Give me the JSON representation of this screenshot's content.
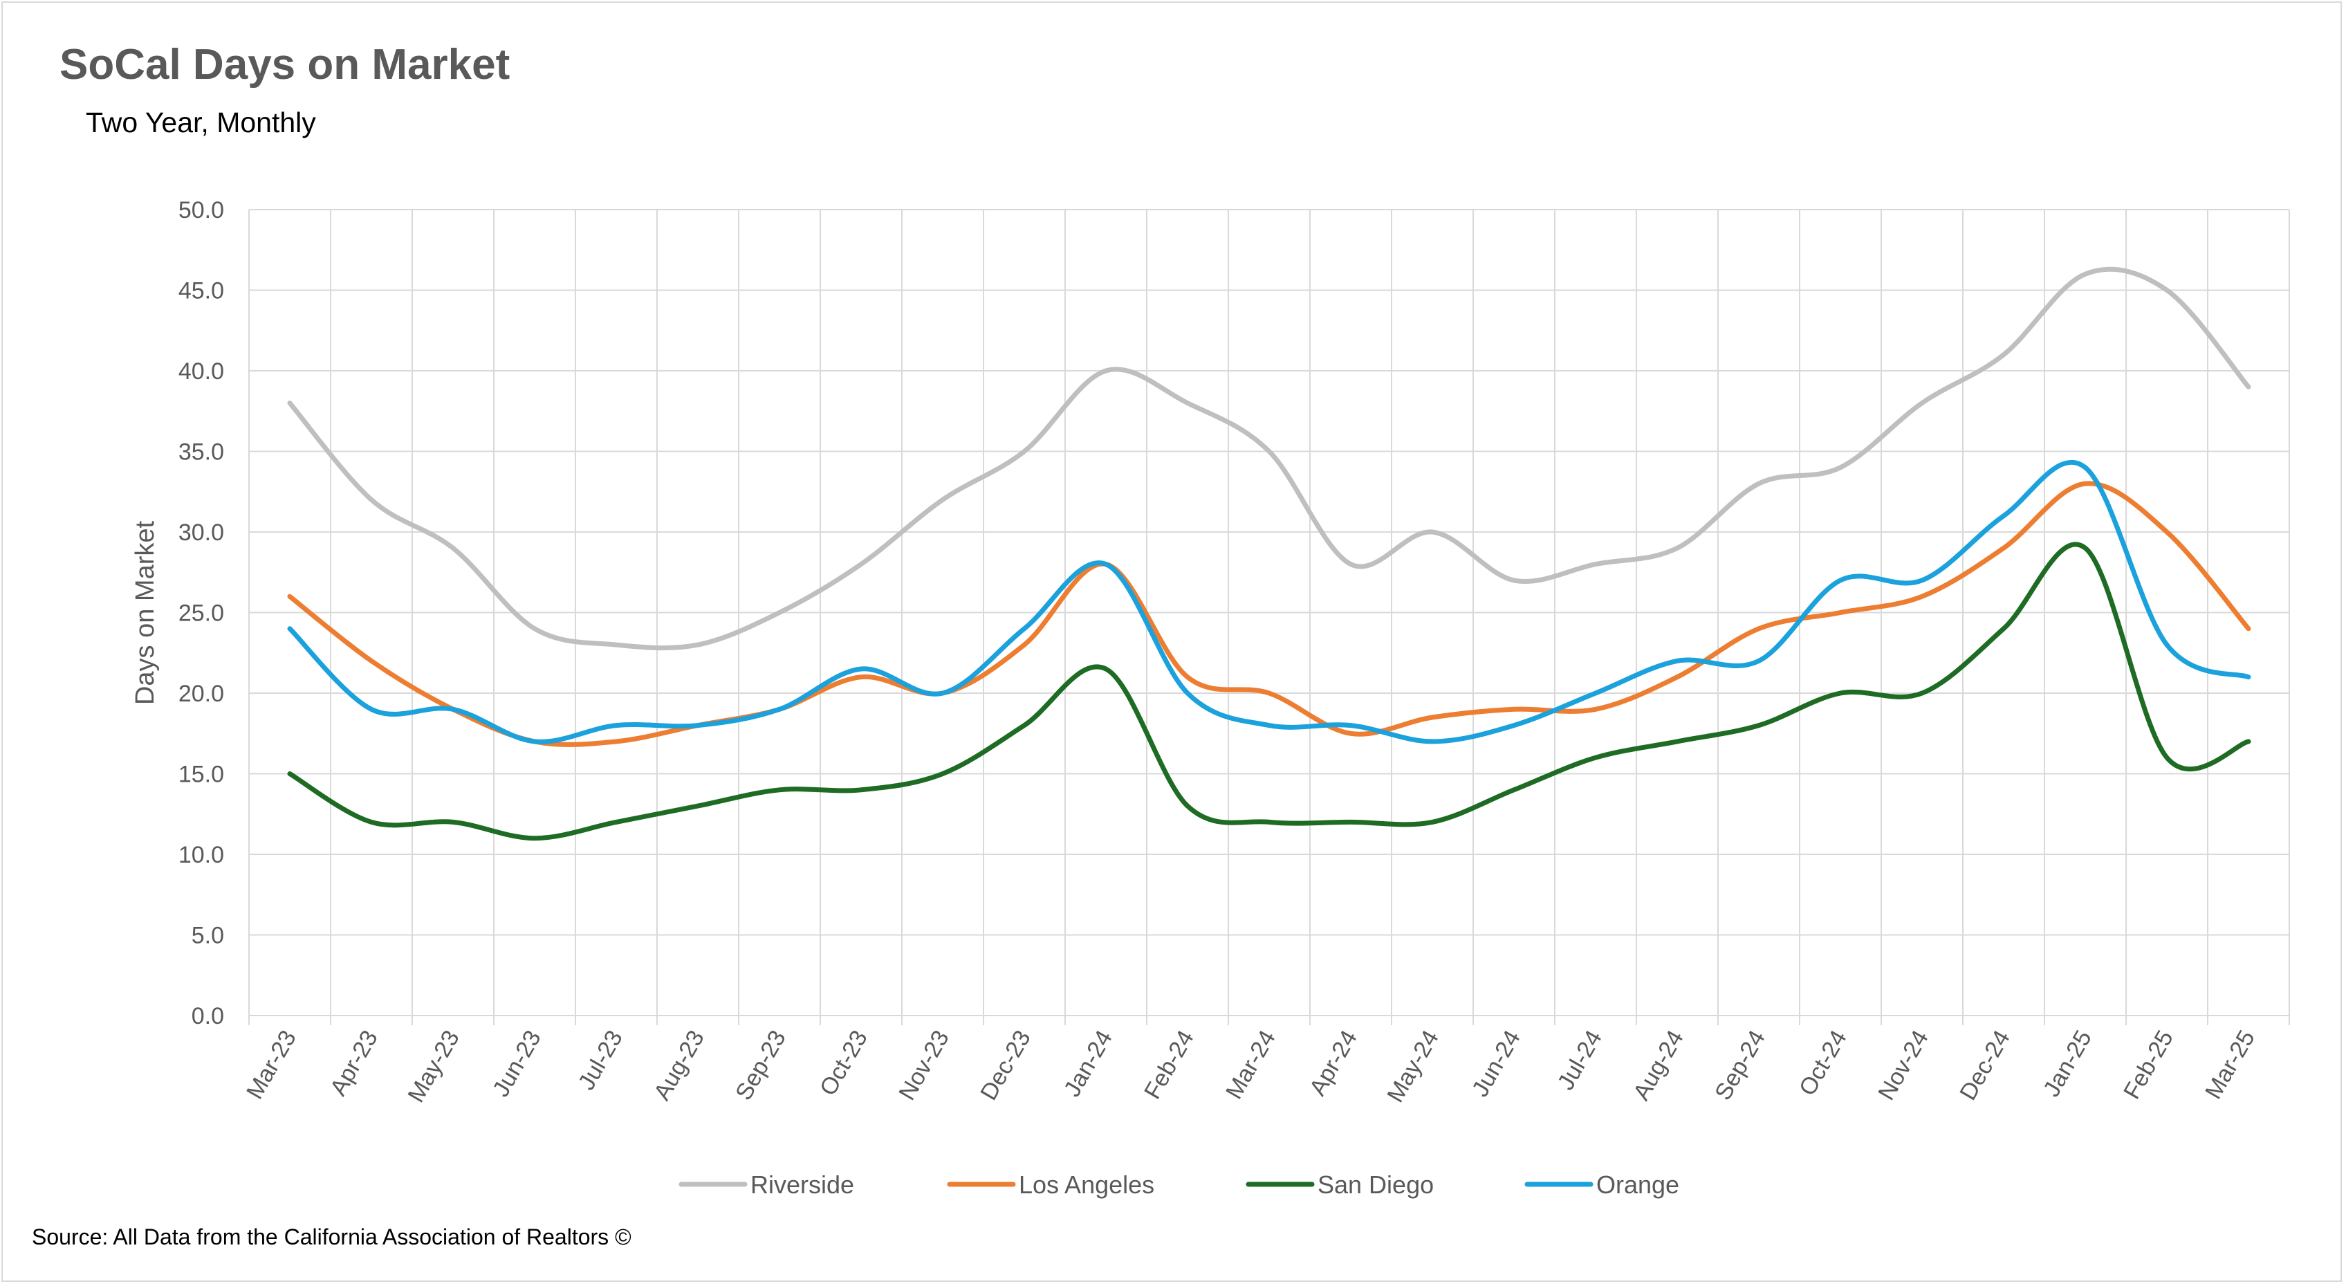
{
  "title": "SoCal Days on Market",
  "subtitle": "Two Year, Monthly",
  "source": "Source: All Data from the California Association of Realtors ©",
  "chart_data": {
    "type": "line",
    "title": "SoCal Days on Market",
    "subtitle": "Two Year, Monthly",
    "xlabel": "",
    "ylabel": "Days on Market",
    "ylim": [
      0,
      50
    ],
    "ytick_step": 5,
    "ytick_format": "0.0",
    "grid": true,
    "legend_position": "bottom",
    "categories": [
      "Mar-23",
      "Apr-23",
      "May-23",
      "Jun-23",
      "Jul-23",
      "Aug-23",
      "Sep-23",
      "Oct-23",
      "Nov-23",
      "Dec-23",
      "Jan-24",
      "Feb-24",
      "Mar-24",
      "Apr-24",
      "May-24",
      "Jun-24",
      "Jul-24",
      "Aug-24",
      "Sep-24",
      "Oct-24",
      "Nov-24",
      "Dec-24",
      "Jan-25",
      "Feb-25",
      "Mar-25"
    ],
    "series": [
      {
        "name": "Riverside",
        "color": "#bfbfbf",
        "values": [
          38,
          32,
          29,
          24,
          23,
          23,
          25,
          28,
          32,
          35,
          40,
          38,
          35,
          28,
          30,
          27,
          28,
          29,
          33,
          34,
          38,
          41,
          46,
          45,
          39
        ]
      },
      {
        "name": "Los Angeles",
        "color": "#ed7d31",
        "values": [
          26,
          22,
          19,
          17,
          17,
          18,
          19,
          21,
          20,
          23,
          28,
          21,
          20,
          17.5,
          18.5,
          19,
          19,
          21,
          24,
          25,
          26,
          29,
          33,
          30,
          24
        ]
      },
      {
        "name": "San Diego",
        "color": "#1e6b24",
        "values": [
          15,
          12,
          12,
          11,
          12,
          13,
          14,
          14,
          15,
          18,
          21.5,
          13,
          12,
          12,
          12,
          14,
          16,
          17,
          18,
          20,
          20,
          24,
          29,
          16,
          17
        ]
      },
      {
        "name": "Orange",
        "color": "#1ba1dc",
        "values": [
          24,
          19,
          19,
          17,
          18,
          18,
          19,
          21.5,
          20,
          24,
          28,
          20,
          18,
          18,
          17,
          18,
          20,
          22,
          22,
          27,
          27,
          31,
          34,
          23,
          21
        ]
      }
    ]
  }
}
